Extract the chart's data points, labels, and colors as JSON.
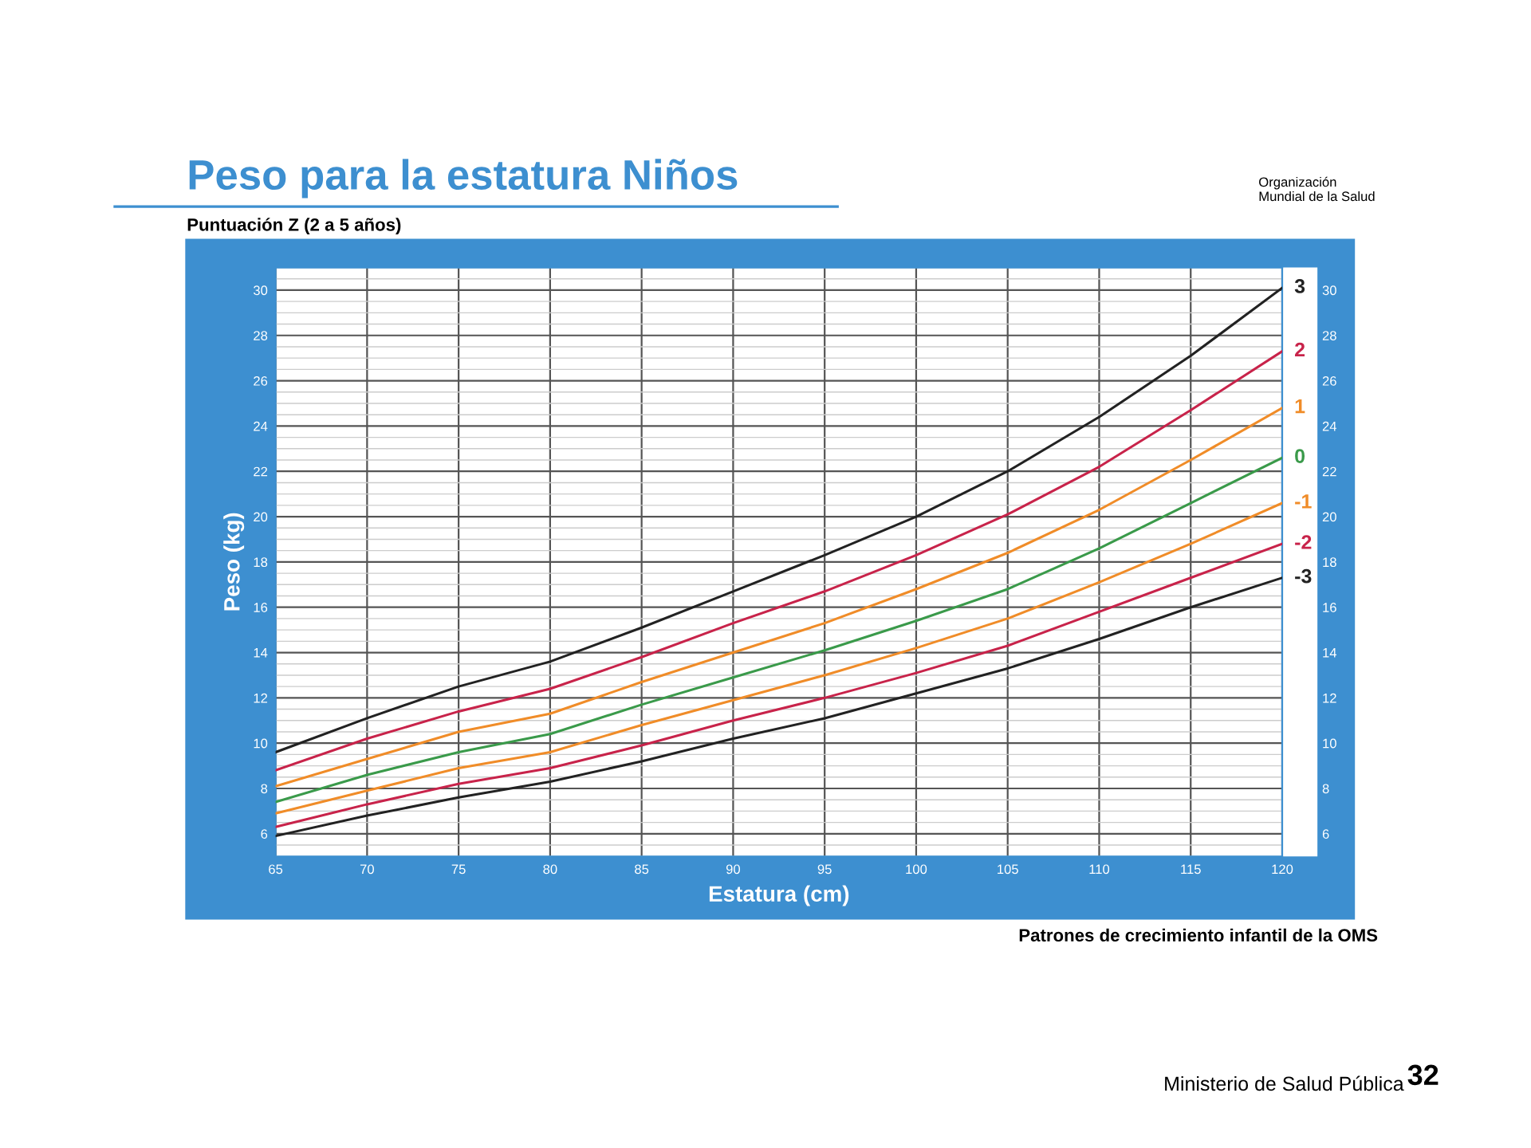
{
  "chart_data": {
    "type": "line",
    "title": "Peso para la estatura Niños",
    "subtitle": "Puntuación Z (2 a 5 años)",
    "xlabel": "Estatura (cm)",
    "ylabel": "Peso (kg)",
    "annotations": [
      "Organización\nMundial de la Salud",
      "Patrones de crecimiento infantil de la OMS",
      "Ministerio de Salud Pública",
      "32"
    ],
    "x": [
      65,
      70,
      75,
      80,
      85,
      90,
      95,
      100,
      105,
      110,
      115,
      120
    ],
    "series": [
      {
        "name": "3",
        "color": "#222222",
        "values": [
          9.6,
          11.1,
          12.5,
          13.6,
          15.1,
          16.7,
          18.3,
          20.0,
          22.0,
          24.4,
          27.1,
          30.1
        ]
      },
      {
        "name": "2",
        "color": "#c8234a",
        "values": [
          8.8,
          10.2,
          11.4,
          12.4,
          13.8,
          15.3,
          16.7,
          18.3,
          20.1,
          22.2,
          24.7,
          27.3
        ]
      },
      {
        "name": "1",
        "color": "#f08c28",
        "values": [
          8.1,
          9.3,
          10.5,
          11.3,
          12.7,
          14.0,
          15.3,
          16.8,
          18.4,
          20.3,
          22.5,
          24.8
        ]
      },
      {
        "name": "0",
        "color": "#3a9a4a",
        "values": [
          7.4,
          8.6,
          9.6,
          10.4,
          11.7,
          12.9,
          14.1,
          15.4,
          16.8,
          18.6,
          20.6,
          22.6
        ]
      },
      {
        "name": "-1",
        "color": "#f08c28",
        "values": [
          6.9,
          7.9,
          8.9,
          9.6,
          10.8,
          11.9,
          13.0,
          14.2,
          15.5,
          17.1,
          18.8,
          20.6
        ]
      },
      {
        "name": "-2",
        "color": "#c8234a",
        "values": [
          6.3,
          7.3,
          8.2,
          8.9,
          9.9,
          11.0,
          12.0,
          13.1,
          14.3,
          15.8,
          17.3,
          18.8
        ]
      },
      {
        "name": "-3",
        "color": "#222222",
        "values": [
          5.9,
          6.8,
          7.6,
          8.3,
          9.2,
          10.2,
          11.1,
          12.2,
          13.3,
          14.6,
          16.0,
          17.3
        ]
      }
    ],
    "xlim": [
      65,
      120
    ],
    "xticks": [
      65,
      70,
      75,
      80,
      85,
      90,
      95,
      100,
      105,
      110,
      115,
      120
    ],
    "ylim": [
      5,
      31
    ],
    "yticks": [
      6,
      8,
      10,
      12,
      14,
      16,
      18,
      20,
      22,
      24,
      26,
      28,
      30
    ],
    "y2lim": [
      5,
      31
    ],
    "y2ticks": [
      6,
      8,
      10,
      12,
      14,
      16,
      18,
      20,
      22,
      24,
      26,
      28,
      30
    ],
    "grid": true,
    "legend": false,
    "marker": "none",
    "line_style": "solid"
  }
}
